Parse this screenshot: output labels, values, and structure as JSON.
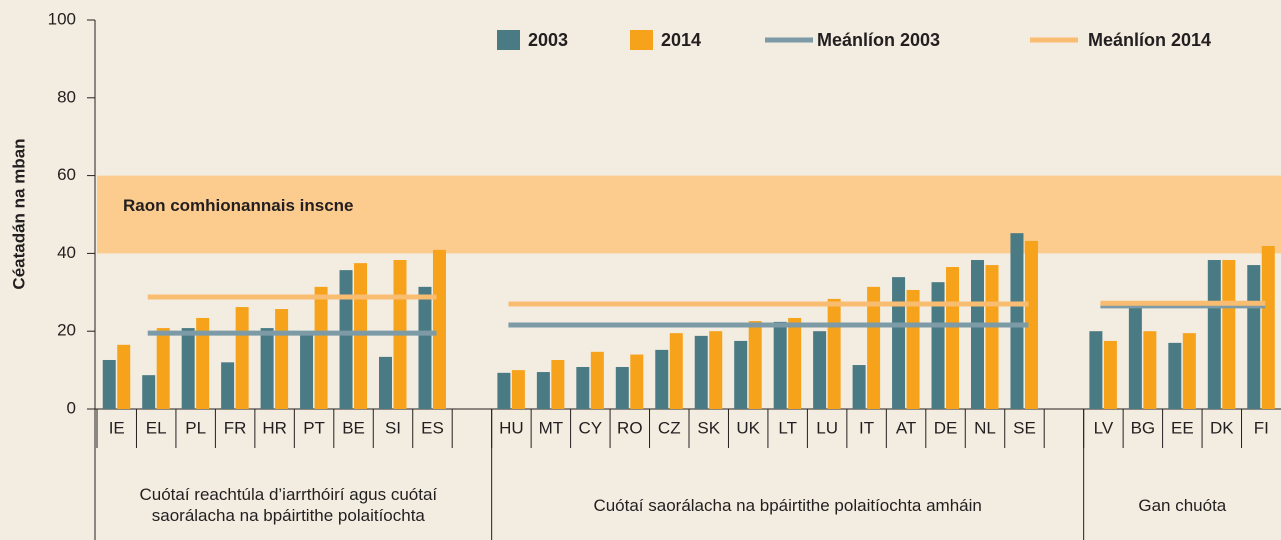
{
  "chart_data": {
    "type": "bar",
    "y_label": "Céatadán na mban",
    "categories": [
      "IE",
      "EL",
      "PL",
      "FR",
      "HR",
      "PT",
      "BE",
      "SI",
      "ES",
      null,
      "HU",
      "MT",
      "CY",
      "RO",
      "CZ",
      "SK",
      "UK",
      "LT",
      "LU",
      "IT",
      "AT",
      "DE",
      "NL",
      "SE",
      null,
      "LV",
      "BG",
      "EE",
      "DK",
      "FI"
    ],
    "series": [
      {
        "name": "2003",
        "color": "#4a7a84",
        "values": [
          12.6,
          8.7,
          20.8,
          12,
          20.8,
          19.8,
          35.7,
          13.4,
          31.4,
          null,
          9.3,
          9.5,
          10.8,
          10.8,
          15.2,
          18.8,
          17.5,
          22.4,
          20,
          11.3,
          33.9,
          32.6,
          38.3,
          45.2,
          null,
          20,
          26.2,
          17,
          38.3,
          37
        ]
      },
      {
        "name": "2014",
        "color": "#f7a21b",
        "values": [
          16.5,
          20.8,
          23.4,
          26.2,
          25.7,
          31.4,
          37.5,
          38.3,
          40.9,
          null,
          10,
          12.6,
          14.7,
          14,
          19.5,
          20,
          22.6,
          23.4,
          28.3,
          31.4,
          30.6,
          36.5,
          37,
          43.2,
          null,
          17.5,
          20,
          19.5,
          38.3,
          41.9
        ]
      }
    ],
    "mean_lines": [
      {
        "name": "Meánlíon 2003",
        "color": "#7d9ba6",
        "values": [
          19.5,
          21.6,
          26.5
        ]
      },
      {
        "name": "Meánlíon 2014",
        "color": "#f9bd72",
        "values": [
          28.8,
          27,
          27.2
        ]
      }
    ],
    "band": {
      "label": "Raon comhionannais inscne",
      "range": [
        40,
        60
      ],
      "color": "#fccb8e"
    },
    "group_labels": [
      "Cuótaí reachtúla d’iarrthóirí agus cuótaí saorálacha na bpáirtithe polaitíochta",
      "Cuótaí saorálacha na bpáirtithe polaitíochta amháin",
      "Gan chuóta"
    ],
    "ylim": [
      0,
      100
    ],
    "yticks": [
      0,
      20,
      40,
      60,
      80,
      100
    ]
  }
}
